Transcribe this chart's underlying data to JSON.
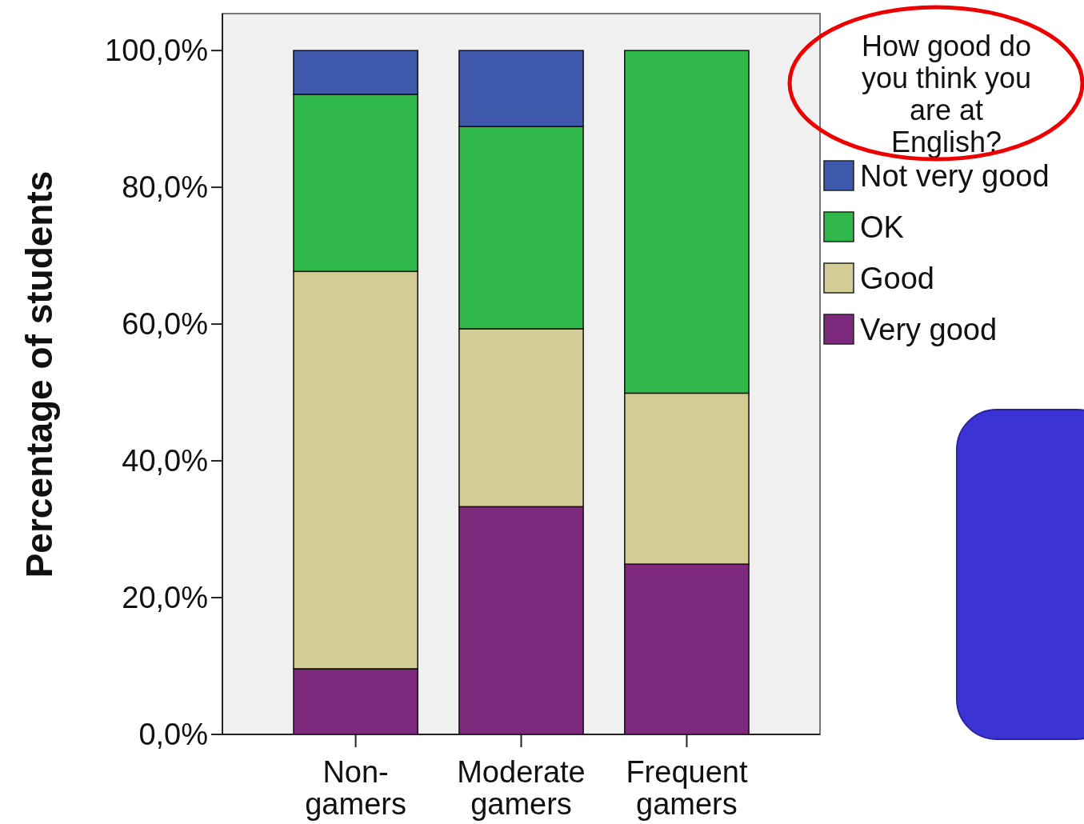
{
  "chart_data": {
    "type": "bar",
    "stacked": true,
    "ylabel": "Percentage of students",
    "legend_title": "How good do you think you are at English?",
    "legend": "right",
    "categories": [
      "Non-gamers",
      "Moderate gamers",
      "Frequent gamers"
    ],
    "series": [
      {
        "name": "Very good",
        "color": "#7b287d",
        "values": [
          9.6,
          33.3,
          24.9
        ]
      },
      {
        "name": "Good",
        "color": "#d4cc95",
        "values": [
          58.1,
          26.0,
          25.0
        ]
      },
      {
        "name": "OK",
        "color": "#31b84b",
        "values": [
          25.9,
          29.6,
          50.1
        ]
      },
      {
        "name": "Not very good",
        "color": "#3e58ac",
        "values": [
          6.4,
          11.1,
          0
        ]
      }
    ],
    "ylim": [
      0,
      105.4
    ],
    "yticks": [
      {
        "value": 0,
        "label": "0,0%"
      },
      {
        "value": 20,
        "label": "20,0%"
      },
      {
        "value": 40,
        "label": "40,0%"
      },
      {
        "value": 60,
        "label": "60,0%"
      },
      {
        "value": 80,
        "label": "80,0%"
      },
      {
        "value": 100,
        "label": "100,0%"
      }
    ],
    "grid": false
  }
}
